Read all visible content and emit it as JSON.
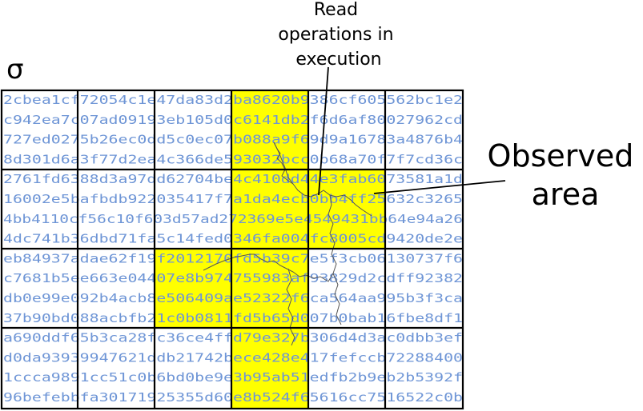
{
  "sigma_label": "σ",
  "read_ops_label_lines": [
    "Read",
    "operations in",
    "execution"
  ],
  "observed_area_label_lines": [
    "Observed",
    "area"
  ],
  "colors": {
    "highlight": "#ffff00",
    "hex_text": "#6e95d6",
    "grid": "#000000",
    "trace": "#555555"
  },
  "hex_rows": [
    "2cbea1cf72054c1e47da83d2ba8620b9386cf605562bc1e2",
    "c942ea7c07ad09193eb105d0c6141db2f6d6af80027962cd",
    "727ed0275b26ec0dd5c0ec07b088a9f69d9a16783a4876b4",
    "8d301d6a3f77d2ea4c366de593032bcc0b68a70f7f7cd36c",
    "2761fd6388d3a97dd62704be4c410dd44e3fab6073581a1d",
    "16002e5bafbdb922035417f7a1da4ecb0bb4ff25632c3265",
    "4bb4110cf56c10f603d57ad272369e5e4549431bb64e94a26",
    "4dc741b36dbd71fa5c14fed0346fa004fc8005cd9420de2e",
    "eb84937adae62f19f2012170fd5b39c7e5f3cb06130737f6",
    "c7681b5ee663e04407e8b974755983af93829d2cdff92382",
    "db0e99e092b4acb8e506409ae52322f6ca564aa995b3f3ca",
    "37b90bd088acbfb21c0b0811fd5b65d007b0bab16fbe8df1",
    "a690ddf65b3ca28fc36ce4ffd79e327b306d4d3ac0dbb3ef",
    "d0da93939947621ddb21742bece428e417fefccb72288400",
    "1ccca9891cc51c0b6bd0be9e3b95ab51edfb2b9eb2b5392f",
    "96befebbfa30171925355d60e8b524f65616cc7516522c0b"
  ]
}
